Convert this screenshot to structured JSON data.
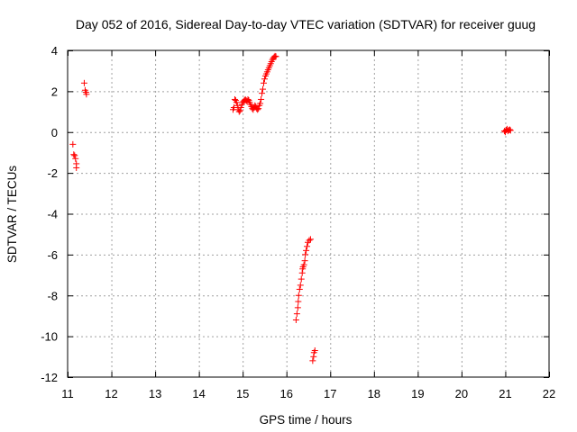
{
  "chart_data": {
    "type": "scatter",
    "title": "Day 052 of 2016, Sidereal Day-to-day VTEC variation (SDTVAR) for receiver guug",
    "xlabel": "GPS time / hours",
    "ylabel": "SDTVAR / TECUs",
    "xlim": [
      11,
      22
    ],
    "ylim": [
      -12,
      4
    ],
    "xticks": [
      11,
      12,
      13,
      14,
      15,
      16,
      17,
      18,
      19,
      20,
      21,
      22
    ],
    "yticks": [
      4,
      2,
      0,
      -2,
      -4,
      -6,
      -8,
      -10,
      -12
    ],
    "grid": true,
    "marker": "+",
    "marker_color": "#ff0000",
    "series": [
      {
        "name": "SDTVAR",
        "points": [
          [
            11.12,
            -0.6
          ],
          [
            11.14,
            -1.1
          ],
          [
            11.16,
            -1.15
          ],
          [
            11.18,
            -1.3
          ],
          [
            11.2,
            -1.55
          ],
          [
            11.2,
            -1.75
          ],
          [
            11.38,
            2.4
          ],
          [
            11.4,
            2.05
          ],
          [
            11.42,
            1.95
          ],
          [
            11.43,
            1.85
          ],
          [
            14.78,
            1.1
          ],
          [
            14.8,
            1.2
          ],
          [
            14.82,
            1.6
          ],
          [
            14.84,
            1.55
          ],
          [
            14.86,
            1.45
          ],
          [
            14.88,
            1.3
          ],
          [
            14.9,
            1.1
          ],
          [
            14.92,
            1.0
          ],
          [
            14.94,
            1.05
          ],
          [
            14.96,
            1.2
          ],
          [
            14.98,
            1.35
          ],
          [
            15.0,
            1.45
          ],
          [
            15.02,
            1.5
          ],
          [
            15.04,
            1.55
          ],
          [
            15.06,
            1.6
          ],
          [
            15.08,
            1.55
          ],
          [
            15.1,
            1.5
          ],
          [
            15.12,
            1.6
          ],
          [
            15.14,
            1.55
          ],
          [
            15.16,
            1.45
          ],
          [
            15.18,
            1.35
          ],
          [
            15.2,
            1.25
          ],
          [
            15.22,
            1.15
          ],
          [
            15.24,
            1.1
          ],
          [
            15.26,
            1.2
          ],
          [
            15.28,
            1.3
          ],
          [
            15.3,
            1.25
          ],
          [
            15.32,
            1.15
          ],
          [
            15.34,
            1.1
          ],
          [
            15.36,
            1.15
          ],
          [
            15.38,
            1.3
          ],
          [
            15.4,
            1.4
          ],
          [
            15.42,
            1.6
          ],
          [
            15.44,
            1.9
          ],
          [
            15.46,
            2.1
          ],
          [
            15.48,
            2.4
          ],
          [
            15.5,
            2.6
          ],
          [
            15.52,
            2.75
          ],
          [
            15.54,
            2.85
          ],
          [
            15.56,
            2.95
          ],
          [
            15.58,
            3.05
          ],
          [
            15.6,
            3.15
          ],
          [
            15.62,
            3.25
          ],
          [
            15.64,
            3.35
          ],
          [
            15.66,
            3.45
          ],
          [
            15.68,
            3.55
          ],
          [
            15.7,
            3.62
          ],
          [
            15.72,
            3.68
          ],
          [
            15.74,
            3.72
          ],
          [
            15.76,
            3.7
          ],
          [
            16.22,
            -9.2
          ],
          [
            16.24,
            -8.9
          ],
          [
            16.26,
            -8.6
          ],
          [
            16.27,
            -8.3
          ],
          [
            16.28,
            -8.0
          ],
          [
            16.3,
            -7.7
          ],
          [
            16.32,
            -7.5
          ],
          [
            16.34,
            -7.2
          ],
          [
            16.36,
            -6.9
          ],
          [
            16.37,
            -6.7
          ],
          [
            16.38,
            -6.6
          ],
          [
            16.4,
            -6.5
          ],
          [
            16.42,
            -6.3
          ],
          [
            16.43,
            -6.0
          ],
          [
            16.45,
            -5.8
          ],
          [
            16.47,
            -5.6
          ],
          [
            16.49,
            -5.4
          ],
          [
            16.52,
            -5.3
          ],
          [
            16.55,
            -5.25
          ],
          [
            16.6,
            -11.2
          ],
          [
            16.62,
            -11.0
          ],
          [
            16.63,
            -10.8
          ],
          [
            16.65,
            -10.7
          ],
          [
            20.98,
            0.05
          ],
          [
            21.0,
            0.0
          ],
          [
            21.02,
            0.1
          ],
          [
            21.04,
            0.15
          ],
          [
            21.06,
            0.05
          ],
          [
            21.08,
            0.1
          ],
          [
            21.1,
            0.12
          ],
          [
            21.12,
            0.08
          ]
        ]
      }
    ]
  }
}
